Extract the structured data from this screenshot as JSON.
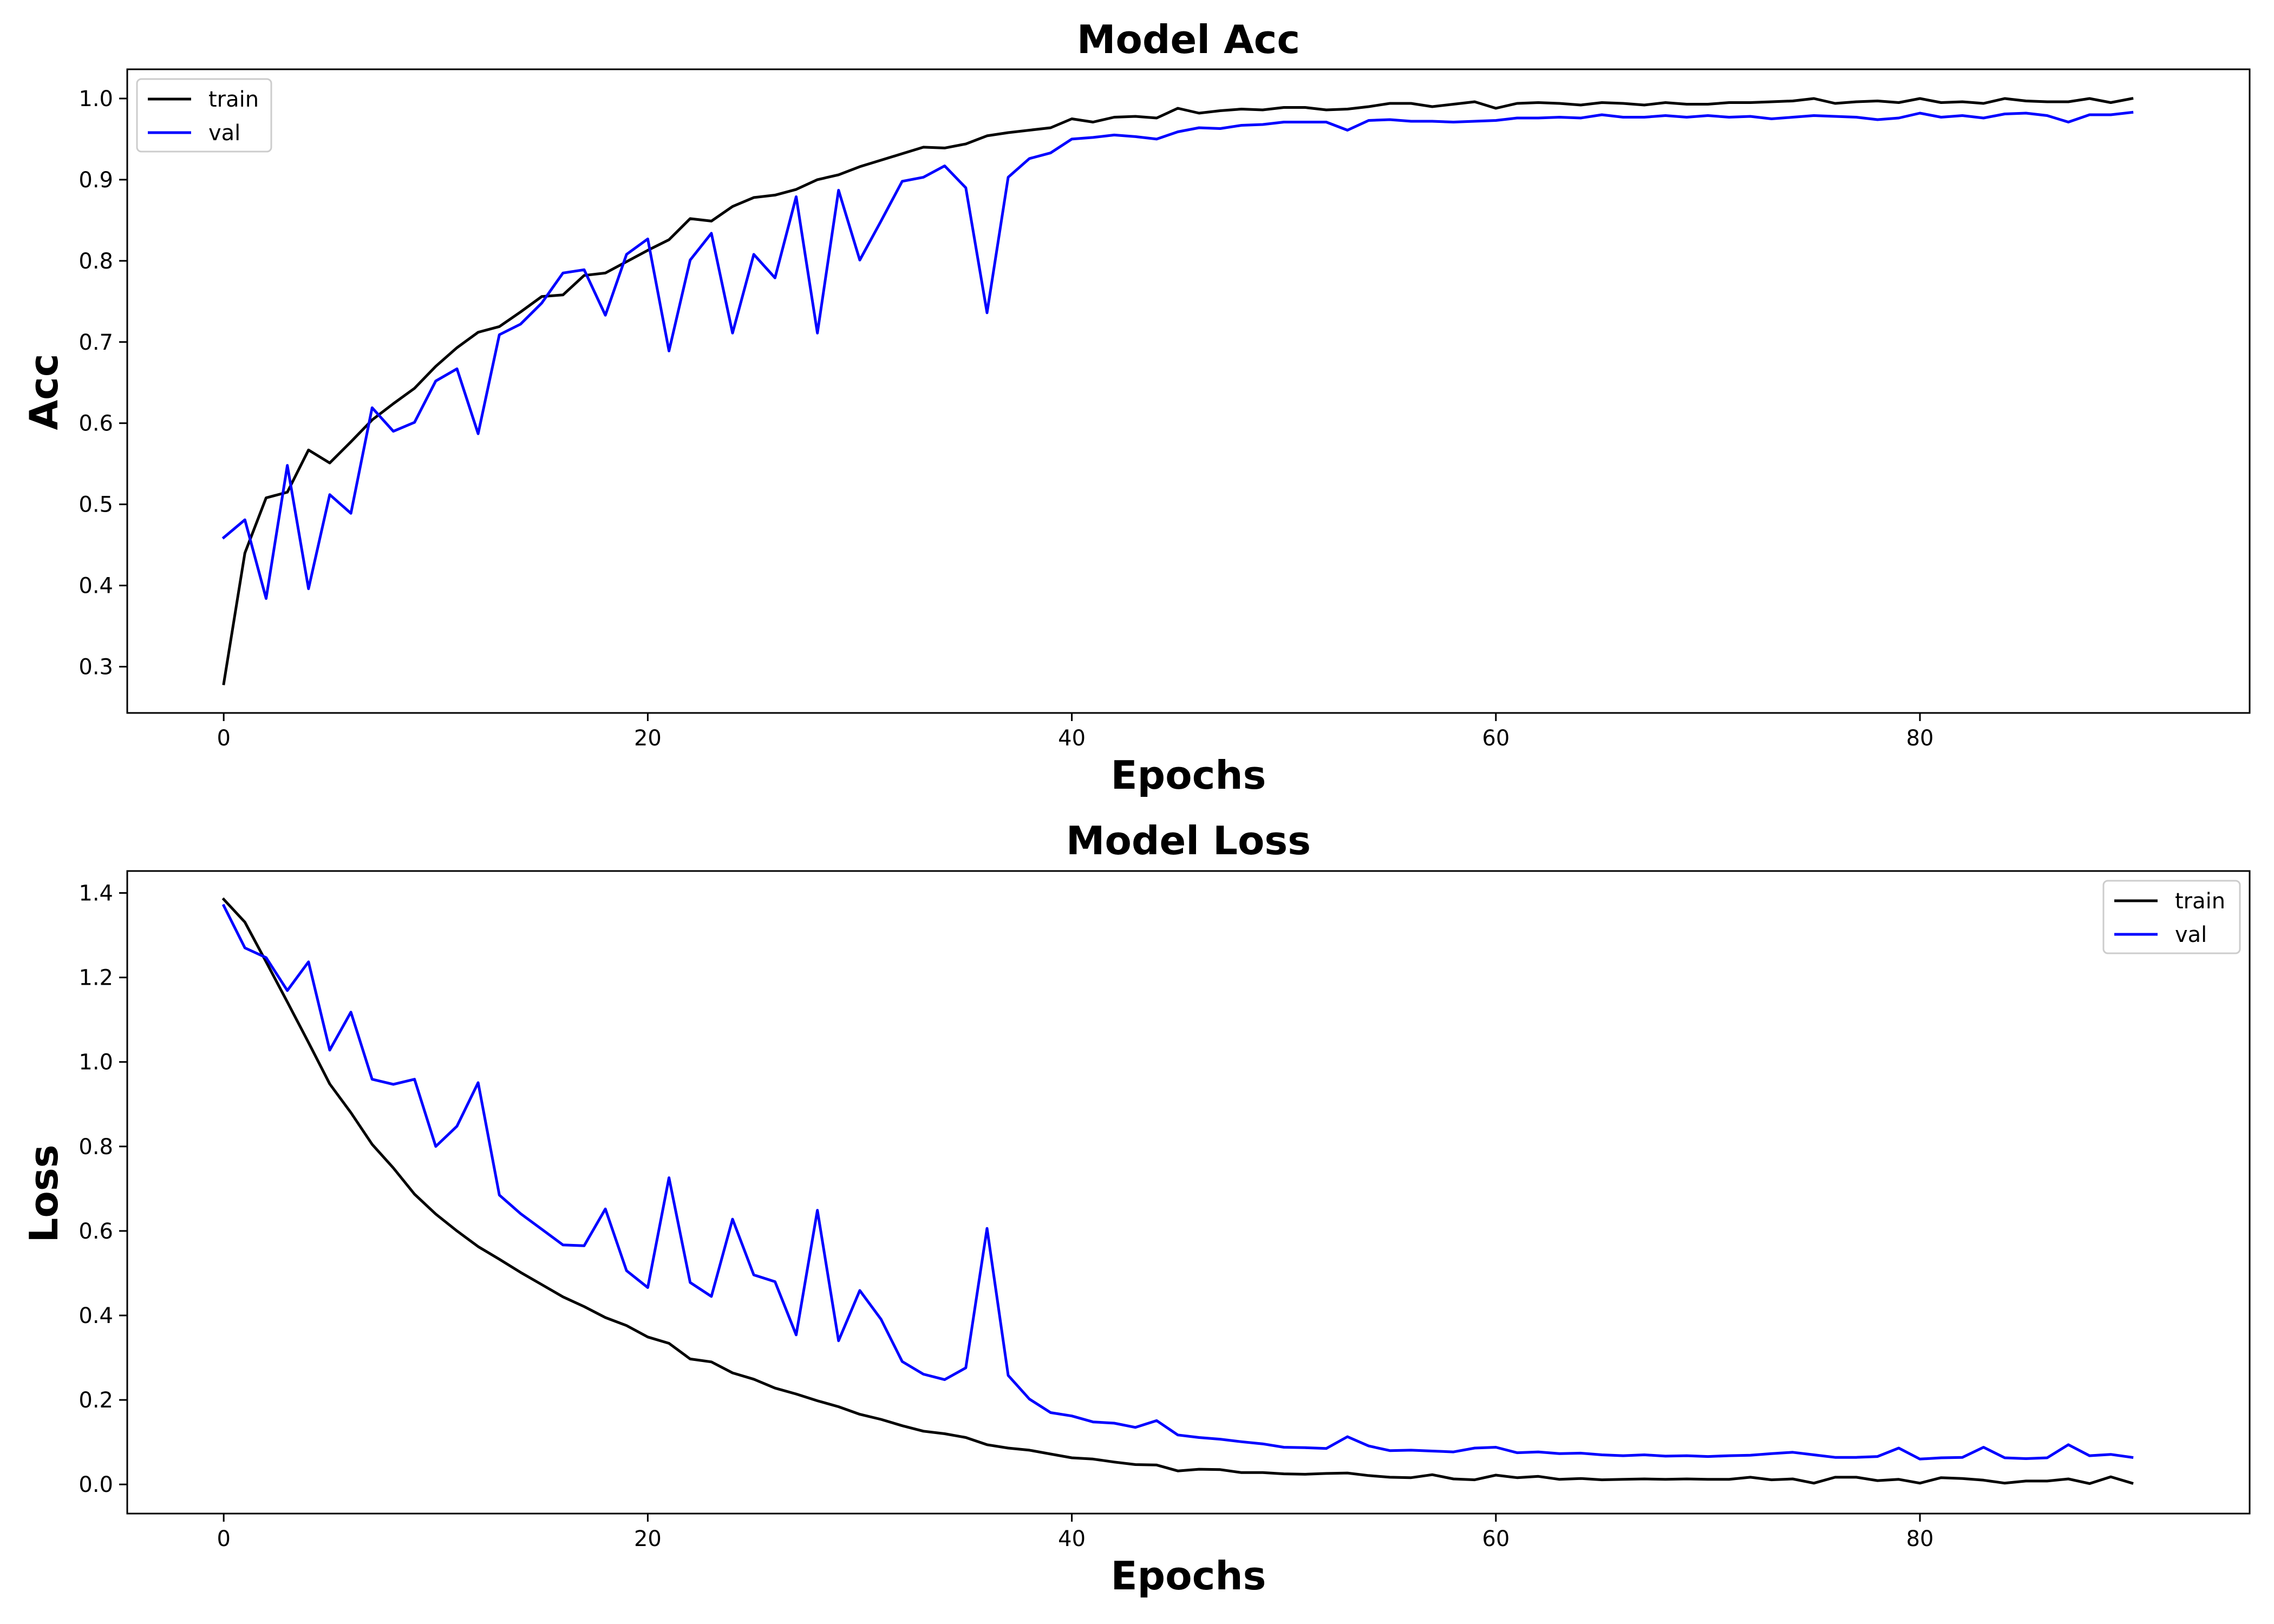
{
  "chart_data": [
    {
      "type": "line",
      "title": "Model Acc",
      "xlabel": "Epochs",
      "ylabel": "Acc",
      "xlim": [
        -4.55,
        95.55
      ],
      "ylim": [
        0.243,
        1.036
      ],
      "x_ticks": [
        0,
        20,
        40,
        60,
        80
      ],
      "y_ticks": [
        0.3,
        0.4,
        0.5,
        0.6,
        0.7,
        0.8,
        0.9,
        1.0
      ],
      "x_tick_labels": [
        "0",
        "20",
        "40",
        "60",
        "80"
      ],
      "y_tick_labels": [
        "0.3",
        "0.4",
        "0.5",
        "0.6",
        "0.7",
        "0.8",
        "0.9",
        "1.0"
      ],
      "grid": false,
      "legend_position": "top-left",
      "x_start": 0,
      "series": [
        {
          "name": "train",
          "color": "#000000",
          "values": [
            0.279,
            0.44,
            0.508,
            0.515,
            0.567,
            0.551,
            0.577,
            0.604,
            0.624,
            0.643,
            0.67,
            0.693,
            0.712,
            0.719,
            0.737,
            0.756,
            0.758,
            0.782,
            0.785,
            0.799,
            0.813,
            0.826,
            0.852,
            0.849,
            0.867,
            0.878,
            0.881,
            0.888,
            0.9,
            0.906,
            0.916,
            0.924,
            0.932,
            0.94,
            0.939,
            0.944,
            0.954,
            0.958,
            0.961,
            0.964,
            0.975,
            0.971,
            0.977,
            0.978,
            0.976,
            0.988,
            0.982,
            0.985,
            0.987,
            0.986,
            0.989,
            0.989,
            0.986,
            0.987,
            0.99,
            0.994,
            0.994,
            0.99,
            0.993,
            0.996,
            0.988,
            0.994,
            0.995,
            0.994,
            0.992,
            0.995,
            0.994,
            0.992,
            0.995,
            0.993,
            0.993,
            0.995,
            0.995,
            0.996,
            0.997,
            1.0,
            0.994,
            0.996,
            0.997,
            0.995,
            1.0,
            0.995,
            0.996,
            0.994,
            1.0,
            0.997,
            0.996,
            0.996,
            1.0,
            0.995,
            1.0
          ]
        },
        {
          "name": "val",
          "color": "#0000ff",
          "values": [
            0.459,
            0.481,
            0.384,
            0.548,
            0.396,
            0.512,
            0.489,
            0.619,
            0.59,
            0.601,
            0.652,
            0.667,
            0.587,
            0.709,
            0.722,
            0.748,
            0.785,
            0.789,
            0.733,
            0.808,
            0.827,
            0.689,
            0.801,
            0.834,
            0.711,
            0.808,
            0.779,
            0.879,
            0.711,
            0.887,
            0.801,
            0.849,
            0.898,
            0.903,
            0.917,
            0.89,
            0.736,
            0.903,
            0.926,
            0.933,
            0.95,
            0.952,
            0.955,
            0.953,
            0.95,
            0.959,
            0.964,
            0.963,
            0.967,
            0.968,
            0.971,
            0.971,
            0.971,
            0.961,
            0.973,
            0.974,
            0.972,
            0.972,
            0.971,
            0.972,
            0.973,
            0.976,
            0.976,
            0.977,
            0.976,
            0.98,
            0.977,
            0.977,
            0.979,
            0.977,
            0.979,
            0.977,
            0.978,
            0.975,
            0.977,
            0.979,
            0.978,
            0.977,
            0.974,
            0.976,
            0.982,
            0.977,
            0.979,
            0.976,
            0.981,
            0.982,
            0.979,
            0.971,
            0.98,
            0.98,
            0.983
          ]
        }
      ]
    },
    {
      "type": "line",
      "title": "Model Loss",
      "xlabel": "Epochs",
      "ylabel": "Loss",
      "xlim": [
        -4.55,
        95.55
      ],
      "ylim": [
        -0.069,
        1.452
      ],
      "x_ticks": [
        0,
        20,
        40,
        60,
        80
      ],
      "y_ticks": [
        0.0,
        0.2,
        0.4,
        0.6,
        0.8,
        1.0,
        1.2,
        1.4
      ],
      "x_tick_labels": [
        "0",
        "20",
        "40",
        "60",
        "80"
      ],
      "y_tick_labels": [
        "0.0",
        "0.2",
        "0.4",
        "0.6",
        "0.8",
        "1.0",
        "1.2",
        "1.4"
      ],
      "grid": false,
      "legend_position": "top-right",
      "x_start": 0,
      "series": [
        {
          "name": "train",
          "color": "#000000",
          "values": [
            1.385,
            1.331,
            1.237,
            1.142,
            1.046,
            0.948,
            0.88,
            0.805,
            0.749,
            0.687,
            0.64,
            0.6,
            0.563,
            0.533,
            0.502,
            0.473,
            0.444,
            0.421,
            0.395,
            0.376,
            0.349,
            0.334,
            0.297,
            0.29,
            0.264,
            0.249,
            0.228,
            0.214,
            0.198,
            0.184,
            0.166,
            0.154,
            0.139,
            0.126,
            0.12,
            0.111,
            0.094,
            0.086,
            0.081,
            0.072,
            0.063,
            0.06,
            0.053,
            0.047,
            0.046,
            0.032,
            0.036,
            0.035,
            0.028,
            0.028,
            0.025,
            0.024,
            0.026,
            0.027,
            0.021,
            0.017,
            0.016,
            0.023,
            0.013,
            0.011,
            0.022,
            0.016,
            0.019,
            0.012,
            0.014,
            0.011,
            0.012,
            0.013,
            0.012,
            0.013,
            0.012,
            0.012,
            0.017,
            0.011,
            0.013,
            0.003,
            0.017,
            0.017,
            0.009,
            0.012,
            0.003,
            0.016,
            0.014,
            0.01,
            0.003,
            0.008,
            0.008,
            0.013,
            0.002,
            0.018,
            0.003
          ]
        },
        {
          "name": "val",
          "color": "#0000ff",
          "values": [
            1.37,
            1.27,
            1.247,
            1.169,
            1.237,
            1.028,
            1.118,
            0.959,
            0.947,
            0.959,
            0.8,
            0.848,
            0.951,
            0.685,
            0.641,
            0.604,
            0.567,
            0.565,
            0.652,
            0.506,
            0.466,
            0.726,
            0.478,
            0.445,
            0.628,
            0.496,
            0.48,
            0.354,
            0.649,
            0.34,
            0.459,
            0.391,
            0.291,
            0.261,
            0.248,
            0.276,
            0.606,
            0.258,
            0.202,
            0.17,
            0.162,
            0.148,
            0.145,
            0.135,
            0.151,
            0.117,
            0.111,
            0.107,
            0.101,
            0.096,
            0.088,
            0.087,
            0.085,
            0.113,
            0.091,
            0.08,
            0.081,
            0.079,
            0.077,
            0.086,
            0.088,
            0.075,
            0.077,
            0.073,
            0.074,
            0.07,
            0.068,
            0.07,
            0.067,
            0.068,
            0.066,
            0.068,
            0.069,
            0.073,
            0.076,
            0.07,
            0.064,
            0.064,
            0.066,
            0.086,
            0.06,
            0.063,
            0.064,
            0.088,
            0.063,
            0.061,
            0.063,
            0.094,
            0.068,
            0.071,
            0.064
          ]
        }
      ]
    }
  ]
}
